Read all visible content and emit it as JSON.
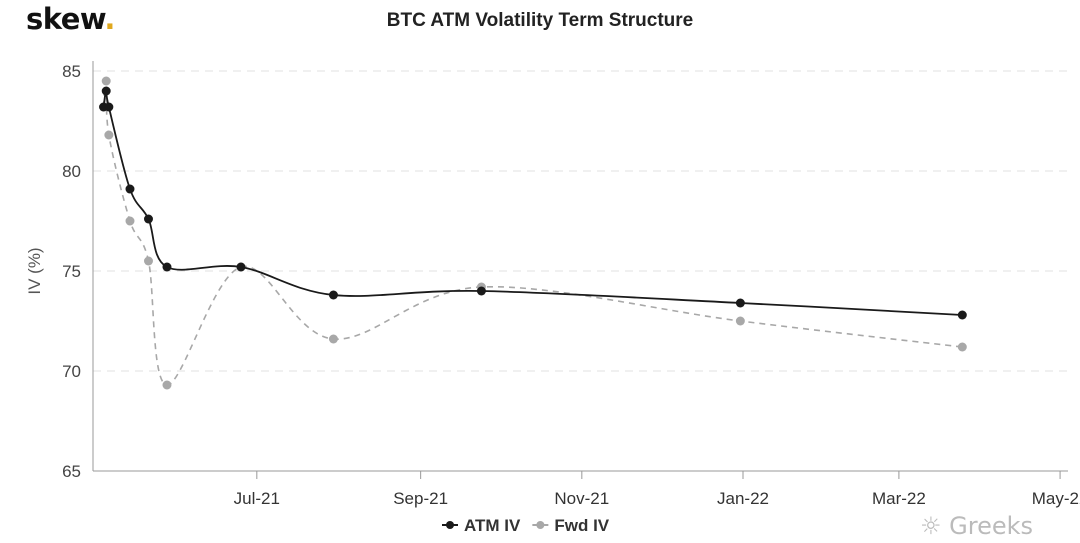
{
  "logo": {
    "text": "skew",
    "dot": ".",
    "dot_color": "#e0a81e"
  },
  "watermark": {
    "text": "Greeks",
    "icon": "wechat-icon"
  },
  "chart_data": {
    "type": "line",
    "title": "BTC ATM Volatility Term Structure",
    "xlabel": "",
    "ylabel": "IV (%)",
    "xlim": [
      "2021-04-30",
      "2022-05-04"
    ],
    "ylim": [
      65,
      85
    ],
    "y_ticks": [
      65,
      70,
      75,
      80,
      85
    ],
    "x_ticks": [
      {
        "date": "2021-07-01",
        "label": "Jul-21"
      },
      {
        "date": "2021-09-01",
        "label": "Sep-21"
      },
      {
        "date": "2021-11-01",
        "label": "Nov-21"
      },
      {
        "date": "2022-01-01",
        "label": "Jan-22"
      },
      {
        "date": "2022-03-01",
        "label": "Mar-22"
      },
      {
        "date": "2022-05-01",
        "label": "May-22"
      }
    ],
    "grid": "horizontal dashed",
    "legend": "bottom-center",
    "x": [
      "2021-05-04",
      "2021-05-05",
      "2021-05-06",
      "2021-05-14",
      "2021-05-21",
      "2021-05-28",
      "2021-06-25",
      "2021-07-30",
      "2021-09-24",
      "2021-12-31",
      "2022-03-25"
    ],
    "series": [
      {
        "name": "ATM IV",
        "color": "#1a1a1a",
        "style": "solid",
        "values": [
          83.2,
          84.0,
          83.2,
          79.1,
          77.6,
          75.2,
          75.2,
          73.8,
          74.0,
          73.4,
          72.8
        ]
      },
      {
        "name": "Fwd IV",
        "color": "#a8a8a8",
        "style": "dashed",
        "values": [
          83.2,
          84.5,
          81.8,
          77.5,
          75.5,
          69.3,
          75.2,
          71.6,
          74.2,
          72.5,
          71.2
        ]
      }
    ]
  }
}
